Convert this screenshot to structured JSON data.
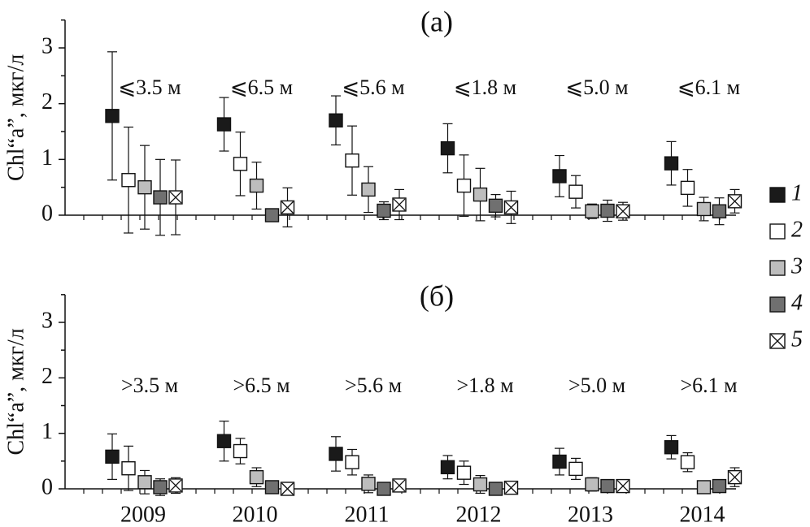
{
  "legend": [
    {
      "id": "1",
      "label": "1",
      "fill": "#1a1a1a",
      "cross": false
    },
    {
      "id": "2",
      "label": "2",
      "fill": "#ffffff",
      "cross": false
    },
    {
      "id": "3",
      "label": "3",
      "fill": "#bdbdbd",
      "cross": false
    },
    {
      "id": "4",
      "label": "4",
      "fill": "#707070",
      "cross": false
    },
    {
      "id": "5",
      "label": "5",
      "fill": "#ffffff",
      "cross": true
    }
  ],
  "chart_data": [
    {
      "type": "scatter",
      "title": "(a)",
      "ylabel": "Chl“a”, мкг/л",
      "ylim": [
        0,
        3.5
      ],
      "yticks": [
        0,
        1,
        2,
        3
      ],
      "categories": [
        "2009",
        "2010",
        "2011",
        "2012",
        "2013",
        "2014"
      ],
      "show_xtick_labels": false,
      "annotations": [
        "⩽3.5 м",
        "⩽6.5 м",
        "⩽5.6 м",
        "⩽1.8 м",
        "⩽5.0 м",
        "⩽6.1 м"
      ],
      "series": [
        {
          "name": "1",
          "values": [
            1.78,
            1.63,
            1.7,
            1.2,
            0.7,
            0.93
          ],
          "err": [
            1.15,
            0.48,
            0.44,
            0.44,
            0.37,
            0.39
          ]
        },
        {
          "name": "2",
          "values": [
            0.63,
            0.92,
            0.98,
            0.53,
            0.42,
            0.49
          ],
          "err": [
            0.95,
            0.57,
            0.62,
            0.55,
            0.29,
            0.33
          ]
        },
        {
          "name": "3",
          "values": [
            0.5,
            0.53,
            0.46,
            0.37,
            0.07,
            0.11
          ],
          "err": [
            0.75,
            0.42,
            0.41,
            0.47,
            0.13,
            0.21
          ]
        },
        {
          "name": "4",
          "values": [
            0.32,
            0.0,
            0.08,
            0.17,
            0.08,
            0.07
          ],
          "err": [
            0.68,
            0.0,
            0.16,
            0.2,
            0.19,
            0.24
          ]
        },
        {
          "name": "5",
          "values": [
            0.32,
            0.14,
            0.19,
            0.14,
            0.07,
            0.25
          ],
          "err": [
            0.67,
            0.35,
            0.27,
            0.29,
            0.16,
            0.21
          ]
        }
      ]
    },
    {
      "type": "scatter",
      "title": "(б)",
      "ylabel": "Chl“a”, мкг/л",
      "ylim": [
        0,
        3.5
      ],
      "yticks": [
        0,
        1,
        2,
        3
      ],
      "categories": [
        "2009",
        "2010",
        "2011",
        "2012",
        "2013",
        "2014"
      ],
      "show_xtick_labels": true,
      "annotations": [
        ">3.5 м",
        ">6.5 м",
        ">5.6 м",
        ">1.8 м",
        ">5.0 м",
        ">6.1 м"
      ],
      "series": [
        {
          "name": "1",
          "values": [
            0.58,
            0.86,
            0.63,
            0.39,
            0.49,
            0.75
          ],
          "err": [
            0.41,
            0.36,
            0.31,
            0.21,
            0.24,
            0.21
          ]
        },
        {
          "name": "2",
          "values": [
            0.37,
            0.68,
            0.48,
            0.29,
            0.36,
            0.48
          ],
          "err": [
            0.4,
            0.23,
            0.23,
            0.21,
            0.19,
            0.17
          ]
        },
        {
          "name": "3",
          "values": [
            0.12,
            0.21,
            0.09,
            0.08,
            0.08,
            0.03
          ],
          "err": [
            0.21,
            0.17,
            0.16,
            0.16,
            0.12,
            0.05
          ]
        },
        {
          "name": "4",
          "values": [
            0.03,
            0.03,
            0.0,
            0.0,
            0.05,
            0.05
          ],
          "err": [
            0.15,
            0.08,
            0.05,
            0.05,
            0.1,
            0.07
          ]
        },
        {
          "name": "5",
          "values": [
            0.06,
            0.0,
            0.06,
            0.02,
            0.05,
            0.21
          ],
          "err": [
            0.14,
            0.05,
            0.09,
            0.05,
            0.07,
            0.17
          ]
        }
      ]
    }
  ]
}
